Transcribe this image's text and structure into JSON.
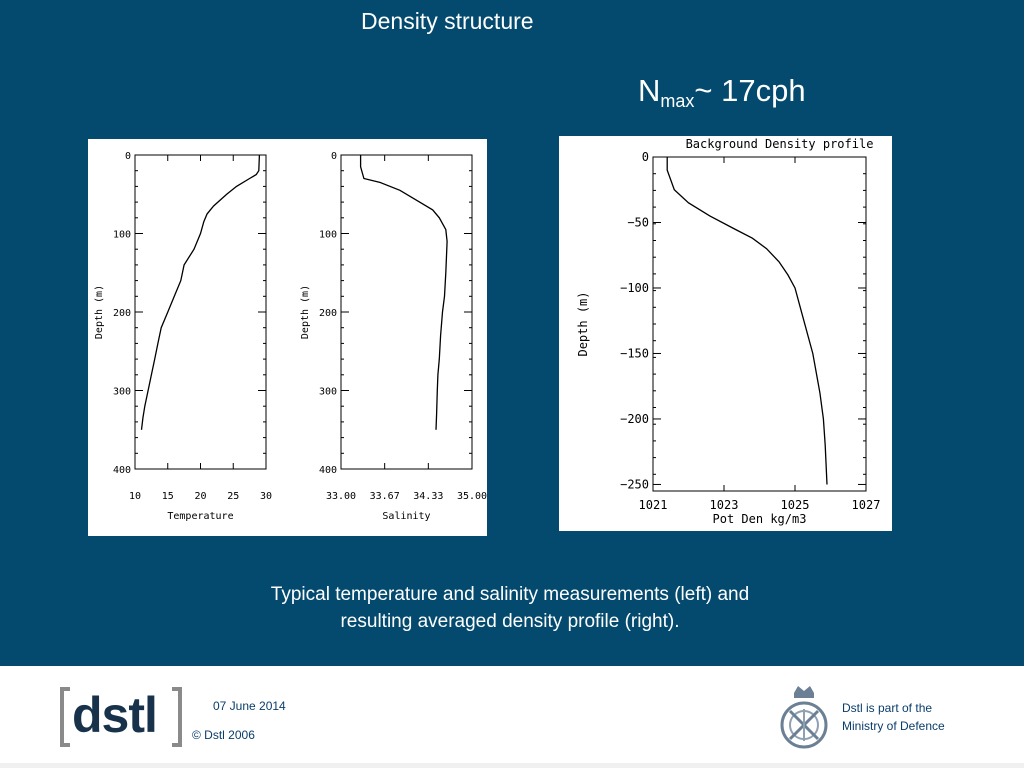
{
  "slide": {
    "title": "Density structure",
    "nmax": {
      "base": "N",
      "subscript": "max",
      "rest": "~ 17cph"
    },
    "caption_line1": "Typical temperature and salinity measurements (left) and",
    "caption_line2": "resulting averaged density profile (right)."
  },
  "colors": {
    "background": "#034a6e",
    "footer_text": "#0a3d6b",
    "logo": "#17324a"
  },
  "chart_data": [
    {
      "type": "line",
      "title": "",
      "xlabel": "Temperature",
      "ylabel": "Depth (m)",
      "xlim": [
        10,
        30
      ],
      "ylim": [
        400,
        0
      ],
      "x_ticks": [
        "10",
        "15",
        "20",
        "25",
        "30"
      ],
      "y_ticks": [
        "0",
        "100",
        "200",
        "300",
        "400"
      ],
      "series": [
        {
          "x": [
            29,
            28.9,
            28.5,
            27.5,
            25.5,
            24,
            22,
            21,
            20.5,
            20,
            19,
            17.5,
            17,
            16,
            15,
            14,
            13.5,
            13,
            12.5,
            12,
            11.5,
            11.2,
            11
          ],
          "y": [
            0,
            20,
            25,
            30,
            40,
            50,
            65,
            75,
            85,
            100,
            120,
            140,
            160,
            180,
            200,
            220,
            240,
            260,
            280,
            300,
            320,
            335,
            350
          ]
        }
      ]
    },
    {
      "type": "line",
      "title": "",
      "xlabel": "Salinity",
      "ylabel": "Depth (m)",
      "xlim": [
        33.0,
        35.0
      ],
      "ylim": [
        400,
        0
      ],
      "x_ticks": [
        "33.00",
        "33.67",
        "34.33",
        "35.00"
      ],
      "y_ticks": [
        "0",
        "100",
        "200",
        "300",
        "400"
      ],
      "series": [
        {
          "x": [
            33.3,
            33.3,
            33.35,
            33.6,
            33.9,
            34.2,
            34.4,
            34.5,
            34.6,
            34.62,
            34.6,
            34.58,
            34.55,
            34.52,
            34.5,
            34.48,
            34.47,
            34.46,
            34.45
          ],
          "y": [
            0,
            15,
            30,
            35,
            45,
            60,
            70,
            80,
            95,
            110,
            150,
            180,
            200,
            230,
            260,
            280,
            300,
            330,
            350
          ]
        }
      ]
    },
    {
      "type": "line",
      "title": "Background Density profile",
      "xlabel": "Pot Den kg/m3",
      "ylabel": "Depth (m)",
      "xlim": [
        1021,
        1027
      ],
      "ylim": [
        -255,
        0
      ],
      "x_ticks": [
        "1021",
        "1023",
        "1025",
        "1027"
      ],
      "y_ticks": [
        "0",
        "−50",
        "−100",
        "−150",
        "−200",
        "−250"
      ],
      "series": [
        {
          "x": [
            1021.4,
            1021.4,
            1021.6,
            1022,
            1022.6,
            1023.3,
            1023.8,
            1024.2,
            1024.55,
            1024.8,
            1025.0,
            1025.2,
            1025.5,
            1025.7,
            1025.8,
            1025.85,
            1025.9
          ],
          "y": [
            0,
            -10,
            -25,
            -35,
            -45,
            -55,
            -62,
            -70,
            -80,
            -90,
            -100,
            -120,
            -150,
            -180,
            -200,
            -220,
            -250
          ]
        }
      ]
    }
  ],
  "footer": {
    "logo_text": "dstl",
    "date": "07 June 2014",
    "copyright": "© Dstl 2006",
    "mod_line1": "Dstl is part of the",
    "mod_line2": "Ministry of Defence"
  }
}
